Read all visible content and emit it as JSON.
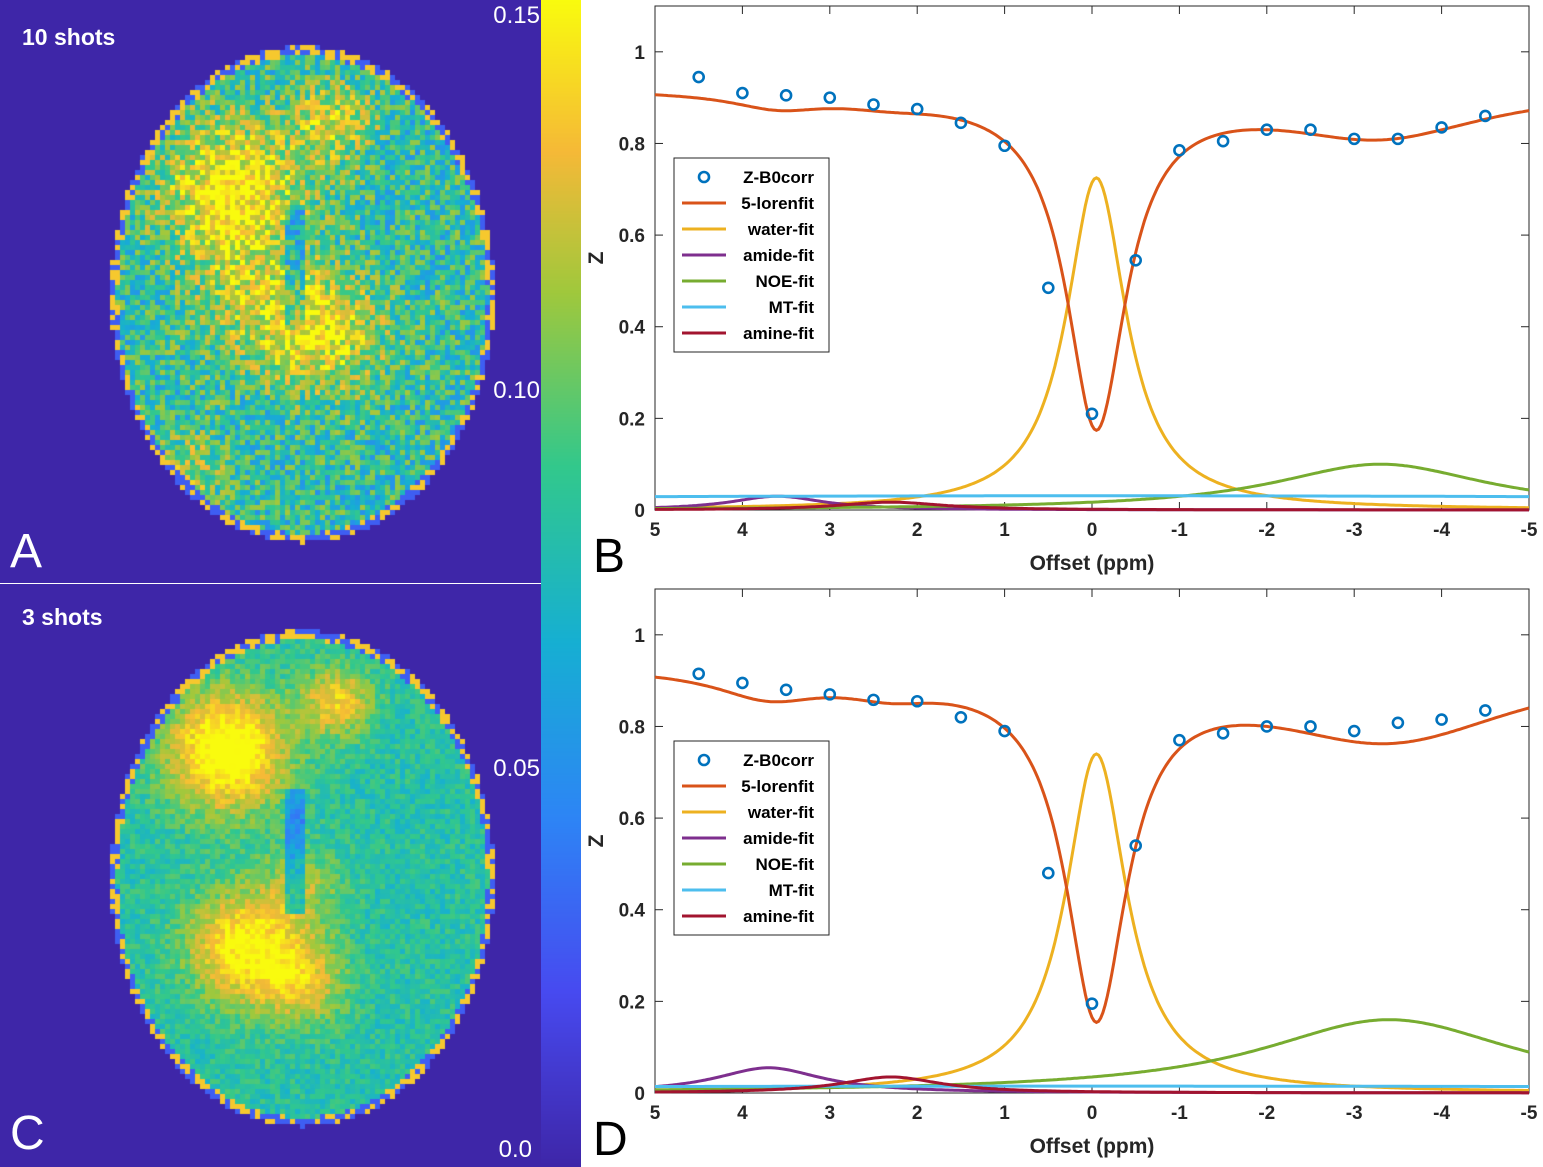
{
  "maps": {
    "top_label": "10 shots",
    "bottom_label": "3 shots",
    "letter_a": "A",
    "letter_c": "C",
    "colormap": "parula",
    "background_color": "#3e26a8"
  },
  "colorbar": {
    "ticks": [
      "0.15",
      "0.10",
      "0.05",
      "0.0"
    ],
    "range": [
      0.0,
      0.15
    ]
  },
  "chart_data": [
    {
      "panel": "B",
      "type": "line",
      "xlabel": "Offset (ppm)",
      "ylabel": "Z",
      "xlim": [
        5,
        -5
      ],
      "ylim": [
        0,
        1.1
      ],
      "xticks": [
        5,
        4,
        3,
        2,
        1,
        0,
        -1,
        -2,
        -3,
        -4,
        -5
      ],
      "yticks": [
        0,
        0.2,
        0.4,
        0.6,
        0.8,
        1
      ],
      "legend_position": "left",
      "params": {
        "water": {
          "a": 0.725,
          "c": -0.05,
          "w": 0.83
        },
        "amide": {
          "a": 0.03,
          "c": 3.6,
          "w": 1.3
        },
        "noe": {
          "a": 0.1,
          "c": -3.3,
          "w": 3.0
        },
        "mt": {
          "a": 0.031,
          "c": 0.0,
          "w": 40.0
        },
        "amine": {
          "a": 0.017,
          "c": 2.3,
          "w": 1.5
        }
      },
      "series": [
        {
          "name": "Z-B0corr",
          "type": "scatter",
          "color": "#0072bd",
          "x": [
            4.5,
            4,
            3.5,
            3,
            2.5,
            2,
            1.5,
            1,
            0.5,
            0,
            -0.5,
            -1,
            -1.5,
            -2,
            -2.5,
            -3,
            -3.5,
            -4,
            -4.5
          ],
          "y": [
            0.945,
            0.91,
            0.905,
            0.9,
            0.885,
            0.875,
            0.845,
            0.795,
            0.485,
            0.21,
            0.545,
            0.785,
            0.805,
            0.83,
            0.83,
            0.81,
            0.81,
            0.835,
            0.86
          ]
        },
        {
          "name": "5-lorenfit",
          "color": "#d95319"
        },
        {
          "name": "water-fit",
          "color": "#edb120"
        },
        {
          "name": "amide-fit",
          "color": "#7e2f8e"
        },
        {
          "name": "NOE-fit",
          "color": "#77ac30"
        },
        {
          "name": "MT-fit",
          "color": "#4dbeee"
        },
        {
          "name": "amine-fit",
          "color": "#a2142f"
        }
      ]
    },
    {
      "panel": "D",
      "type": "line",
      "xlabel": "Offset (ppm)",
      "ylabel": "Z",
      "xlim": [
        5,
        -5
      ],
      "ylim": [
        0,
        1.1
      ],
      "xticks": [
        5,
        4,
        3,
        2,
        1,
        0,
        -1,
        -2,
        -3,
        -4,
        -5
      ],
      "yticks": [
        0,
        0.2,
        0.4,
        0.6,
        0.8,
        1
      ],
      "legend_position": "left",
      "params": {
        "water": {
          "a": 0.74,
          "c": -0.05,
          "w": 0.85
        },
        "amide": {
          "a": 0.055,
          "c": 3.7,
          "w": 1.5
        },
        "noe": {
          "a": 0.16,
          "c": -3.4,
          "w": 3.6
        },
        "mt": {
          "a": 0.015,
          "c": 0.0,
          "w": 40.0
        },
        "amine": {
          "a": 0.035,
          "c": 2.3,
          "w": 1.4
        }
      },
      "series": [
        {
          "name": "Z-B0corr",
          "type": "scatter",
          "color": "#0072bd",
          "x": [
            4.5,
            4,
            3.5,
            3,
            2.5,
            2,
            1.5,
            1,
            0.5,
            0,
            -0.5,
            -1,
            -1.5,
            -2,
            -2.5,
            -3,
            -3.5,
            -4,
            -4.5
          ],
          "y": [
            0.915,
            0.895,
            0.88,
            0.87,
            0.858,
            0.855,
            0.82,
            0.79,
            0.48,
            0.195,
            0.54,
            0.77,
            0.785,
            0.8,
            0.8,
            0.79,
            0.808,
            0.815,
            0.835
          ]
        },
        {
          "name": "5-lorenfit",
          "color": "#d95319"
        },
        {
          "name": "water-fit",
          "color": "#edb120"
        },
        {
          "name": "amide-fit",
          "color": "#7e2f8e"
        },
        {
          "name": "NOE-fit",
          "color": "#77ac30"
        },
        {
          "name": "MT-fit",
          "color": "#4dbeee"
        },
        {
          "name": "amine-fit",
          "color": "#a2142f"
        }
      ]
    }
  ]
}
